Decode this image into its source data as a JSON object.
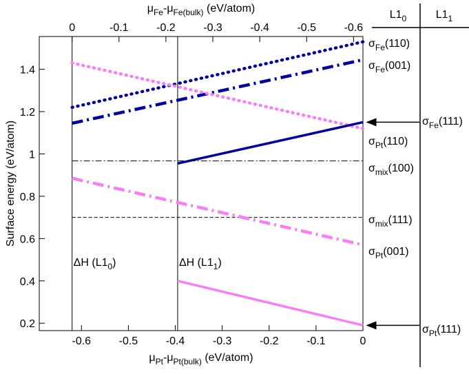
{
  "chart_data": {
    "type": "line",
    "x_label": [
      {
        "t": "μ"
      },
      {
        "t": "Pt",
        "sub": true
      },
      {
        "t": "-μ"
      },
      {
        "t": "Pt(bulk)",
        "sub": true
      },
      {
        "t": " (eV/atom)"
      }
    ],
    "x2_label": [
      {
        "t": "μ"
      },
      {
        "t": "Fe",
        "sub": true
      },
      {
        "t": "-μ"
      },
      {
        "t": "Fe(bulk)",
        "sub": true
      },
      {
        "t": " (eV/atom)"
      }
    ],
    "y_label": "Surface energy (eV/atom)",
    "xlim": [
      -0.69,
      0
    ],
    "xticks": [
      -0.6,
      -0.5,
      -0.4,
      -0.3,
      -0.2,
      -0.1,
      0
    ],
    "x2lim": [
      0.07,
      -0.62
    ],
    "x2ticks": [
      0,
      -0.1,
      -0.2,
      -0.3,
      -0.4,
      -0.5,
      -0.6
    ],
    "ylim": [
      0.165,
      1.555
    ],
    "yticks": [
      0.2,
      0.4,
      0.6,
      0.8,
      1,
      1.2,
      1.4
    ],
    "vlines": [
      {
        "x": -0.62,
        "label": [
          {
            "t": "ΔH (L1"
          },
          {
            "t": "0",
            "sub": true
          },
          {
            "t": ")"
          }
        ]
      },
      {
        "x": -0.395,
        "label": [
          {
            "t": "ΔH (L1"
          },
          {
            "t": "1",
            "sub": true
          },
          {
            "t": ")"
          }
        ]
      }
    ],
    "panel_headers": [
      [
        {
          "t": "L1"
        },
        {
          "t": "0",
          "sub": true
        }
      ],
      [
        {
          "t": "L1"
        },
        {
          "t": "1",
          "sub": true
        }
      ]
    ],
    "series": [
      {
        "label": [
          {
            "t": "σ"
          },
          {
            "t": "Fe",
            "sub": true
          },
          {
            "t": "(110)"
          }
        ],
        "color": "#0000a0",
        "style": "dot",
        "x": [
          -0.62,
          0
        ],
        "values": [
          1.22,
          1.53
        ]
      },
      {
        "label": [
          {
            "t": "σ"
          },
          {
            "t": "Fe",
            "sub": true
          },
          {
            "t": "(001)"
          }
        ],
        "color": "#0000a0",
        "style": "dashdot",
        "x": [
          -0.62,
          0
        ],
        "values": [
          1.145,
          1.445
        ]
      },
      {
        "label": [
          {
            "t": "σ"
          },
          {
            "t": "Pt",
            "sub": true
          },
          {
            "t": "(110)"
          }
        ],
        "color": "#f77ef7",
        "style": "dot",
        "x": [
          -0.62,
          0
        ],
        "values": [
          1.43,
          1.12
        ]
      },
      {
        "label": [
          {
            "t": "σ"
          },
          {
            "t": "Fe",
            "sub": true
          },
          {
            "t": "(111)"
          }
        ],
        "color": "#0000a0",
        "style": "solid",
        "arrow": true,
        "x": [
          -0.395,
          0
        ],
        "values": [
          0.955,
          1.15
        ]
      },
      {
        "label": [
          {
            "t": "σ"
          },
          {
            "t": "mix",
            "sub": true
          },
          {
            "t": "(100)"
          }
        ],
        "color": "#000000",
        "style": "thindashdot",
        "x": [
          -0.62,
          0
        ],
        "values": [
          0.967,
          0.967
        ]
      },
      {
        "label": [
          {
            "t": "σ"
          },
          {
            "t": "mix",
            "sub": true
          },
          {
            "t": "(111)"
          }
        ],
        "color": "#000000",
        "style": "thindash",
        "x": [
          -0.62,
          0
        ],
        "values": [
          0.7,
          0.7
        ]
      },
      {
        "label": [
          {
            "t": "σ"
          },
          {
            "t": "Pt",
            "sub": true
          },
          {
            "t": "(001)"
          }
        ],
        "color": "#f77ef7",
        "style": "dashdot",
        "x": [
          -0.62,
          0
        ],
        "values": [
          0.885,
          0.57
        ]
      },
      {
        "label": [
          {
            "t": "σ"
          },
          {
            "t": "Pt",
            "sub": true
          },
          {
            "t": "(111)"
          }
        ],
        "color": "#f77ef7",
        "style": "solid",
        "arrow": true,
        "x": [
          -0.395,
          0
        ],
        "values": [
          0.4,
          0.19
        ]
      }
    ]
  }
}
